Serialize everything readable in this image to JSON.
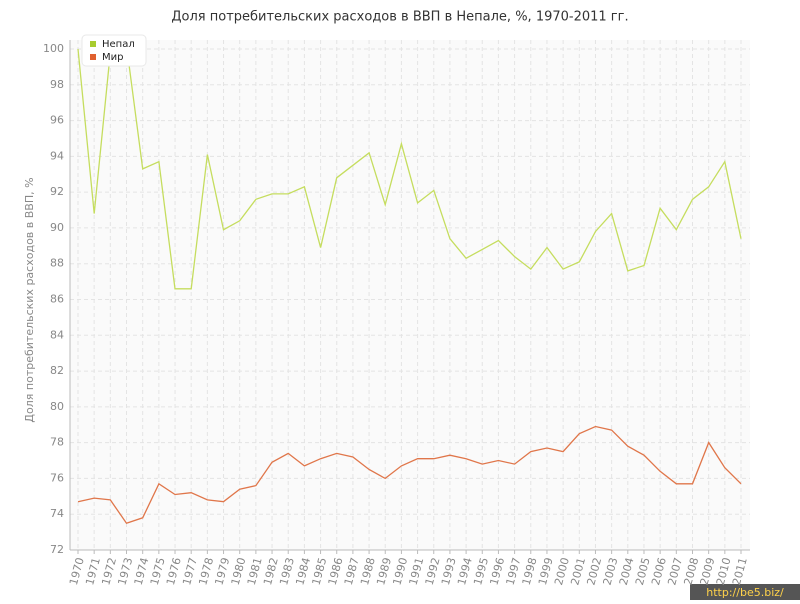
{
  "chart_data": {
    "type": "line",
    "title": "Доля потребительских расходов в ВВП в Непале, %, 1970-2011 гг.",
    "y_label": "Доля потребительских расходов в ВВП, %",
    "categories": [
      "1970",
      "1971",
      "1972",
      "1973",
      "1974",
      "1975",
      "1976",
      "1977",
      "1978",
      "1979",
      "1980",
      "1981",
      "1982",
      "1983",
      "1984",
      "1985",
      "1986",
      "1987",
      "1988",
      "1989",
      "1990",
      "1991",
      "1992",
      "1993",
      "1994",
      "1995",
      "1996",
      "1997",
      "1998",
      "1999",
      "2000",
      "2001",
      "2002",
      "2003",
      "2004",
      "2005",
      "2006",
      "2007",
      "2008",
      "2009",
      "2010",
      "2011"
    ],
    "series": [
      {
        "name": "Непал",
        "color": "#c5dd5e",
        "legend_color": "#a8cc2f",
        "values": [
          100.0,
          90.8,
          99.8,
          100.2,
          93.3,
          93.7,
          86.6,
          86.6,
          94.1,
          89.9,
          90.4,
          91.6,
          91.9,
          91.9,
          92.3,
          88.9,
          92.8,
          93.5,
          94.2,
          91.3,
          94.7,
          91.4,
          92.1,
          89.4,
          88.3,
          88.8,
          89.3,
          88.4,
          87.7,
          88.9,
          87.7,
          88.1,
          89.8,
          90.8,
          87.6,
          87.9,
          91.1,
          89.9,
          91.6,
          92.3,
          93.7,
          89.4
        ]
      },
      {
        "name": "Мир",
        "color": "#e0764a",
        "legend_color": "#e0602f",
        "values": [
          74.7,
          74.9,
          74.8,
          73.5,
          73.8,
          75.7,
          75.1,
          75.2,
          74.8,
          74.7,
          75.4,
          75.6,
          76.9,
          77.4,
          76.7,
          77.1,
          77.4,
          77.2,
          76.5,
          76.0,
          76.7,
          77.1,
          77.1,
          77.3,
          77.1,
          76.8,
          77.0,
          76.8,
          77.5,
          77.7,
          77.5,
          78.5,
          78.9,
          78.7,
          77.8,
          77.3,
          76.4,
          75.7,
          75.7,
          78.0,
          76.6,
          75.7
        ]
      }
    ],
    "ylim": [
      72,
      100
    ],
    "yticks": [
      72,
      74,
      76,
      78,
      80,
      82,
      84,
      86,
      88,
      90,
      92,
      94,
      96,
      98,
      100
    ],
    "grid": true,
    "legend": "top-left",
    "watermark": "http://be5.biz/"
  }
}
